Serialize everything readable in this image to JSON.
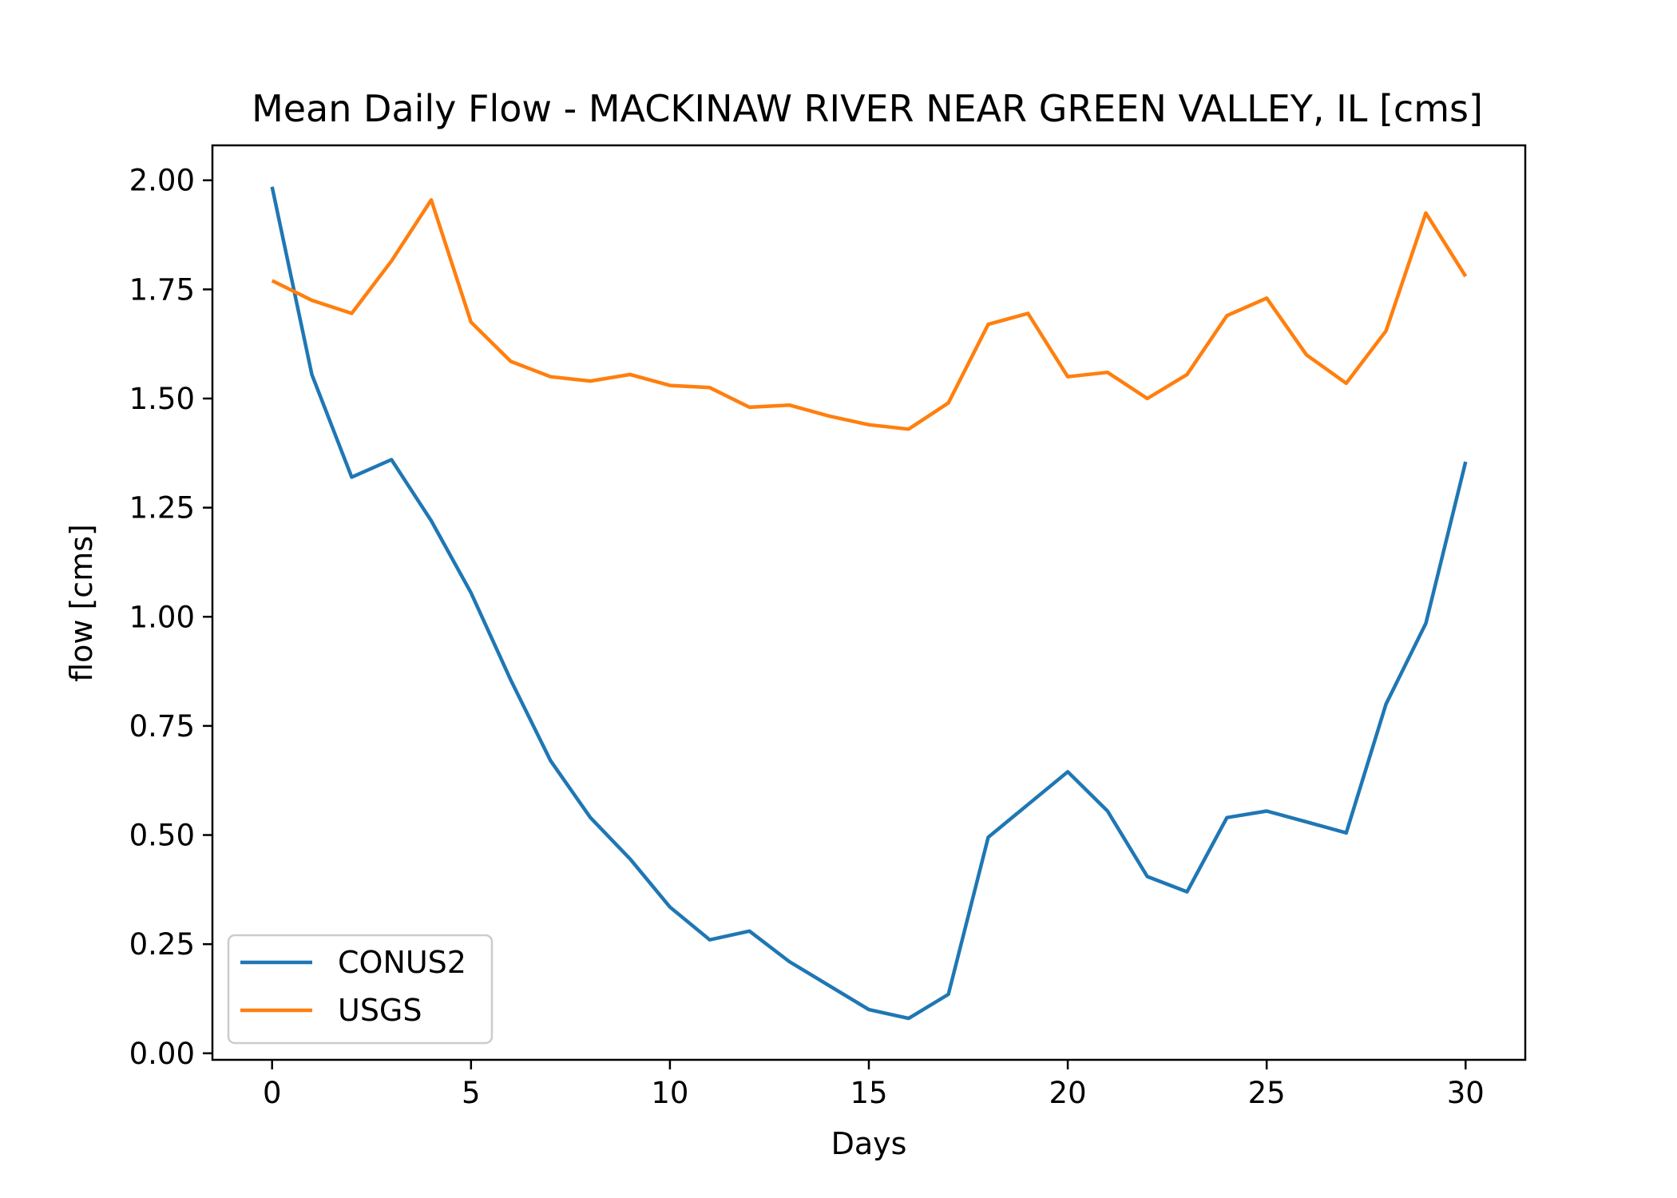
{
  "chart_data": {
    "type": "line",
    "title": "Mean Daily Flow - MACKINAW RIVER NEAR GREEN VALLEY, IL [cms]",
    "xlabel": "Days",
    "ylabel": "flow [cms]",
    "xlim": [
      -1.5,
      31.5
    ],
    "ylim": [
      -0.015,
      2.08
    ],
    "xticks": [
      0,
      5,
      10,
      15,
      20,
      25,
      30
    ],
    "xtick_labels": [
      "0",
      "5",
      "10",
      "15",
      "20",
      "25",
      "30"
    ],
    "yticks": [
      0,
      0.25,
      0.5,
      0.75,
      1.0,
      1.25,
      1.5,
      1.75,
      2.0
    ],
    "ytick_labels": [
      "0.00",
      "0.25",
      "0.50",
      "0.75",
      "1.00",
      "1.25",
      "1.50",
      "1.75",
      "2.00"
    ],
    "grid": false,
    "legend_position": "lower-left",
    "x": [
      0,
      1,
      2,
      3,
      4,
      5,
      6,
      7,
      8,
      9,
      10,
      11,
      12,
      13,
      14,
      15,
      16,
      17,
      18,
      19,
      20,
      21,
      22,
      23,
      24,
      25,
      26,
      27,
      28,
      29,
      30
    ],
    "series": [
      {
        "name": "CONUS2",
        "color": "#1f77b4",
        "values": [
          1.985,
          1.555,
          1.32,
          1.36,
          1.22,
          1.055,
          0.855,
          0.67,
          0.54,
          0.445,
          0.335,
          0.26,
          0.28,
          0.21,
          0.155,
          0.1,
          0.08,
          0.135,
          0.495,
          0.57,
          0.645,
          0.555,
          0.405,
          0.37,
          0.54,
          0.555,
          0.53,
          0.505,
          0.8,
          0.985,
          1.355
        ]
      },
      {
        "name": "USGS",
        "color": "#ff7f0e",
        "values": [
          1.77,
          1.725,
          1.695,
          1.815,
          1.955,
          1.675,
          1.585,
          1.55,
          1.54,
          1.555,
          1.53,
          1.525,
          1.48,
          1.485,
          1.46,
          1.44,
          1.43,
          1.49,
          1.67,
          1.695,
          1.55,
          1.56,
          1.5,
          1.555,
          1.69,
          1.73,
          1.6,
          1.535,
          1.655,
          1.925,
          1.78
        ]
      }
    ]
  }
}
